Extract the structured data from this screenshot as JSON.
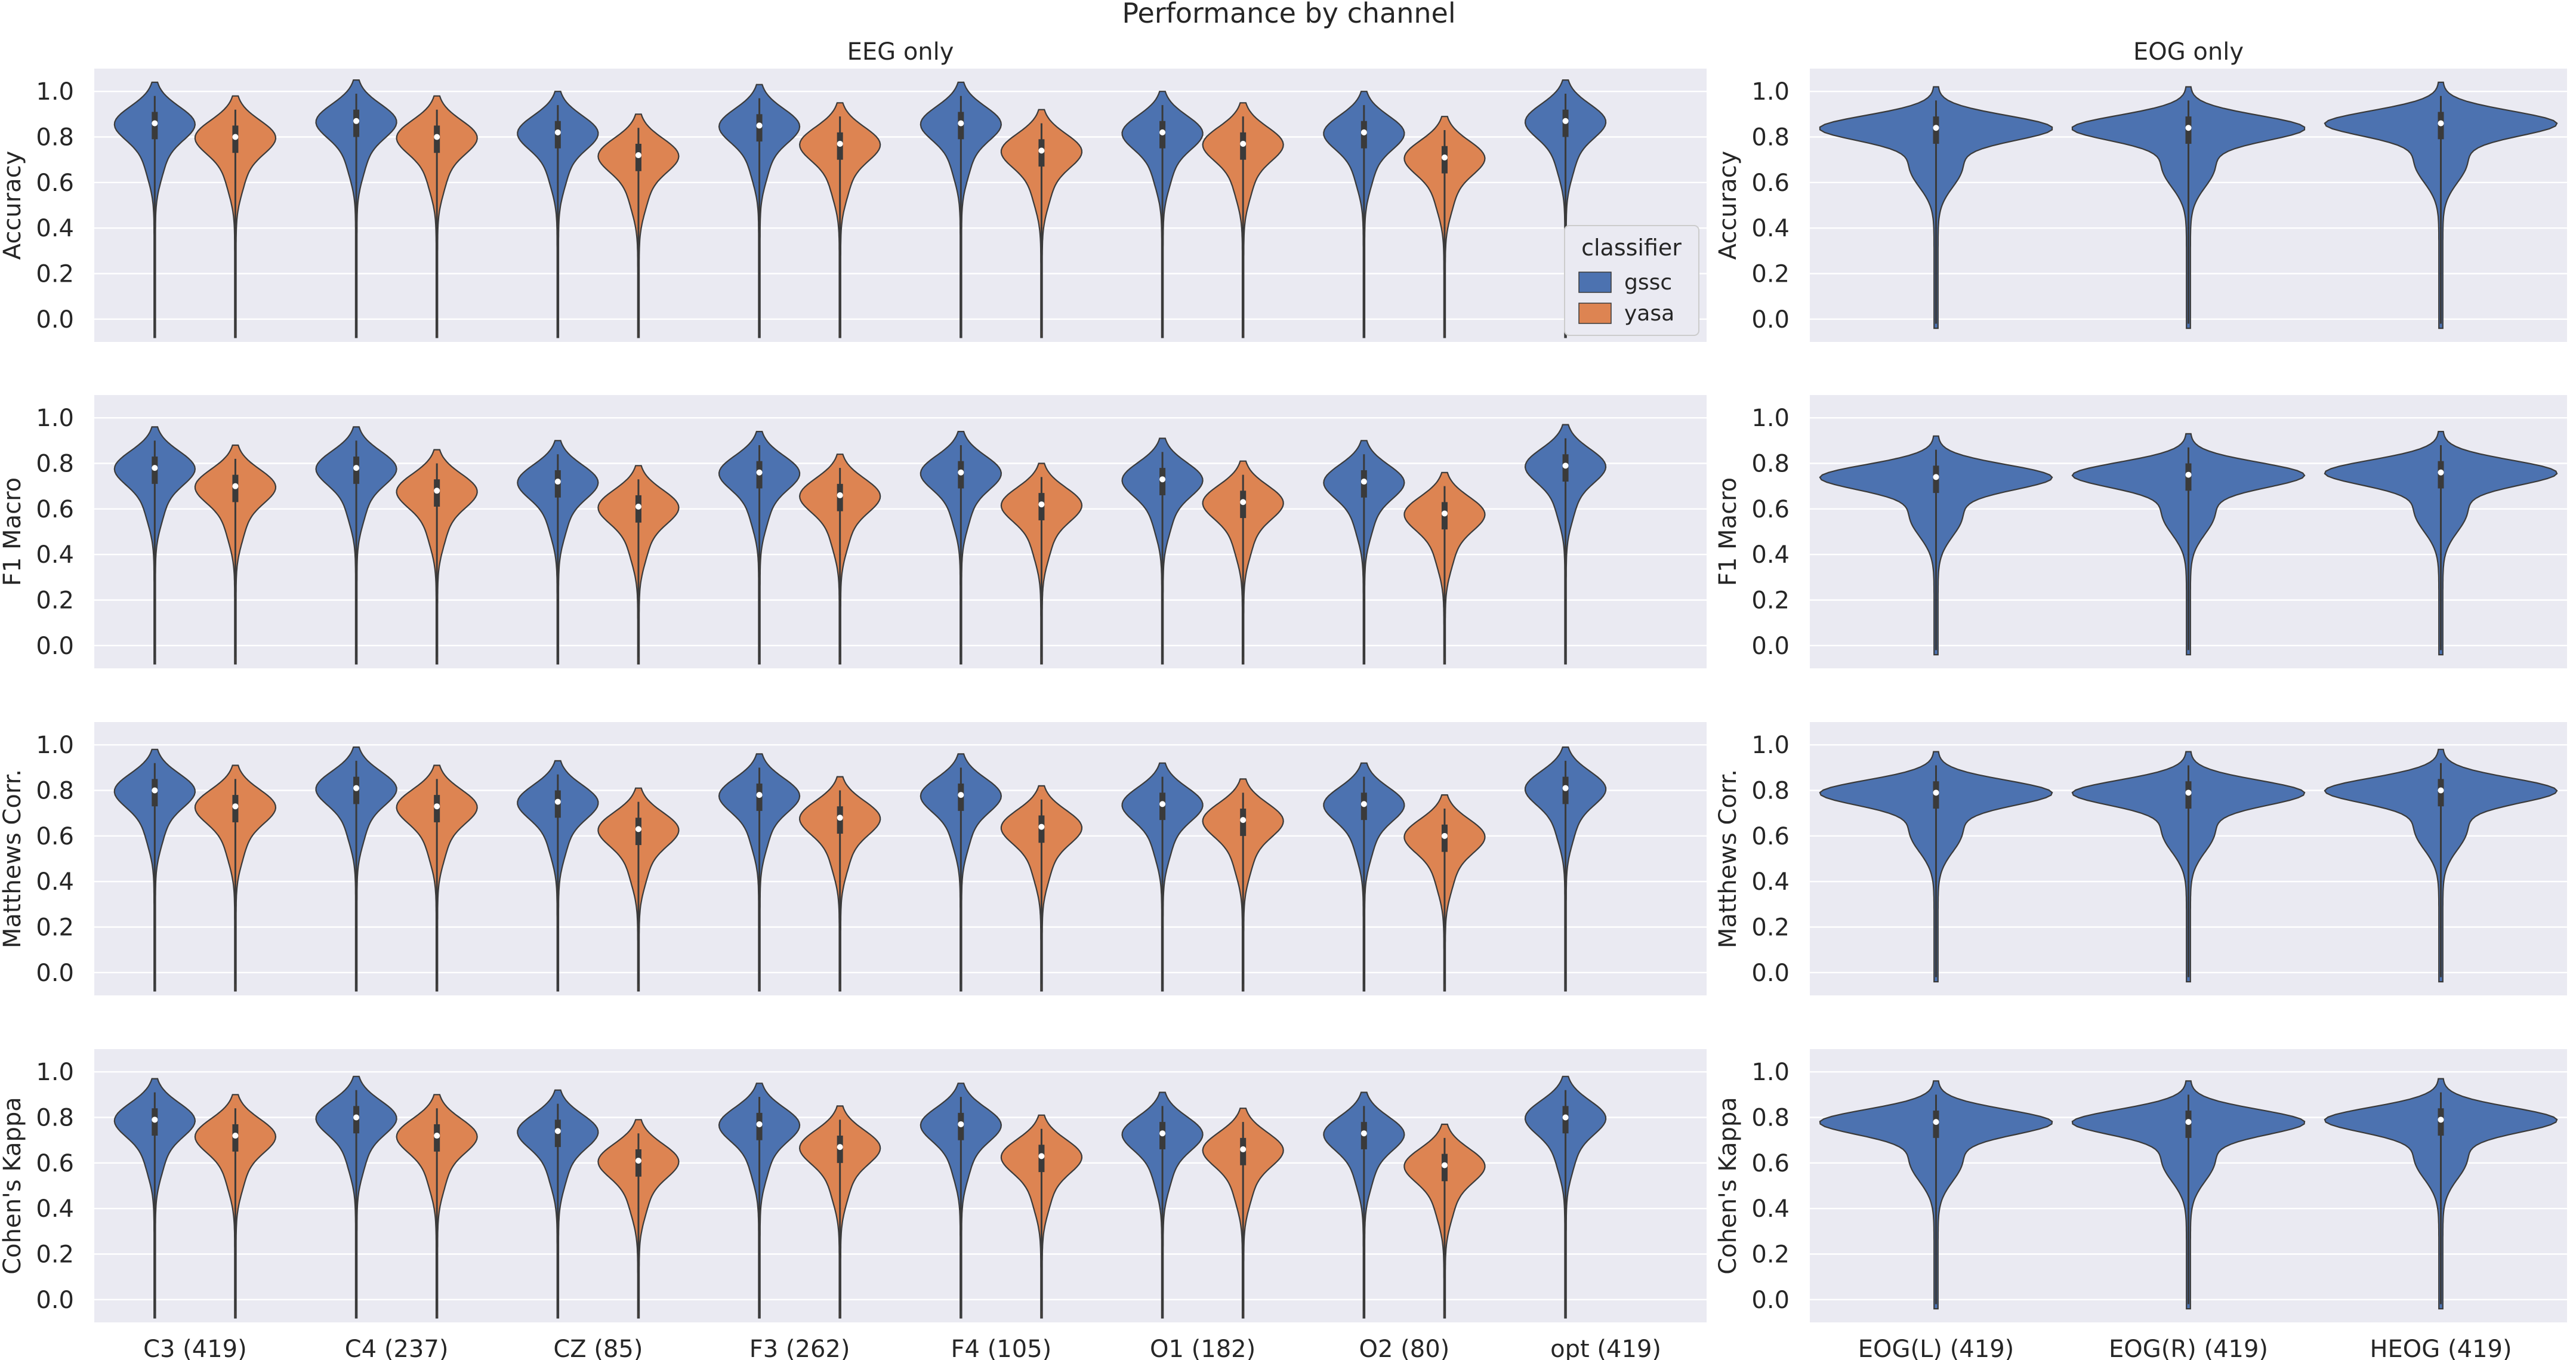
{
  "figure": {
    "title": "Performance by channel"
  },
  "colors": {
    "panel_bg": "#EAEAF2",
    "grid": "#FFFFFF",
    "gssc": "#4C72B0",
    "yasa": "#DD8452",
    "outline": "#3A3A3A",
    "text": "#262626"
  },
  "legend": {
    "title": "classifier",
    "entries": [
      {
        "name": "gssc",
        "color": "#4C72B0"
      },
      {
        "name": "yasa",
        "color": "#DD8452"
      }
    ],
    "placement": "inside top-right panel, EEG Accuracy row"
  },
  "chart_data": {
    "type": "violin",
    "title": "Performance by channel",
    "yticks": [
      "0.0",
      "0.2",
      "0.4",
      "0.6",
      "0.8",
      "1.0"
    ],
    "ylim": [
      -0.1,
      1.1
    ],
    "metrics": [
      {
        "key": "acc",
        "label": "Accuracy"
      },
      {
        "key": "f1",
        "label": "F1 Macro"
      },
      {
        "key": "mcc",
        "label": "Matthews Corr."
      },
      {
        "key": "kappa",
        "label": "Cohen's Kappa"
      }
    ],
    "panels": [
      {
        "key": "eeg",
        "title": "EEG only",
        "categories": [
          "C3 (419)",
          "C4 (237)",
          "CZ (85)",
          "F3 (262)",
          "F4 (105)",
          "O1 (182)",
          "O2 (80)",
          "opt (419)"
        ],
        "series": [
          {
            "name": "gssc",
            "values": {
              "acc": [
                0.86,
                0.87,
                0.82,
                0.85,
                0.86,
                0.82,
                0.82,
                0.87
              ],
              "f1": [
                0.78,
                0.78,
                0.72,
                0.76,
                0.76,
                0.73,
                0.72,
                0.79
              ],
              "mcc": [
                0.8,
                0.81,
                0.75,
                0.78,
                0.78,
                0.74,
                0.74,
                0.81
              ],
              "kappa": [
                0.79,
                0.8,
                0.74,
                0.77,
                0.77,
                0.73,
                0.73,
                0.8
              ]
            }
          },
          {
            "name": "yasa",
            "values": {
              "acc": [
                0.8,
                0.8,
                0.72,
                0.77,
                0.74,
                0.77,
                0.71,
                null
              ],
              "f1": [
                0.7,
                0.68,
                0.61,
                0.66,
                0.62,
                0.63,
                0.58,
                null
              ],
              "mcc": [
                0.73,
                0.73,
                0.63,
                0.68,
                0.64,
                0.67,
                0.6,
                null
              ],
              "kappa": [
                0.72,
                0.72,
                0.61,
                0.67,
                0.63,
                0.66,
                0.59,
                null
              ]
            }
          }
        ]
      },
      {
        "key": "eog",
        "title": "EOG only",
        "categories": [
          "EOG(L) (419)",
          "EOG(R) (419)",
          "HEOG (419)"
        ],
        "series": [
          {
            "name": "gssc",
            "values": {
              "acc": [
                0.84,
                0.84,
                0.86
              ],
              "f1": [
                0.74,
                0.75,
                0.76
              ],
              "mcc": [
                0.79,
                0.79,
                0.8
              ],
              "kappa": [
                0.78,
                0.78,
                0.79
              ]
            }
          }
        ]
      }
    ]
  }
}
